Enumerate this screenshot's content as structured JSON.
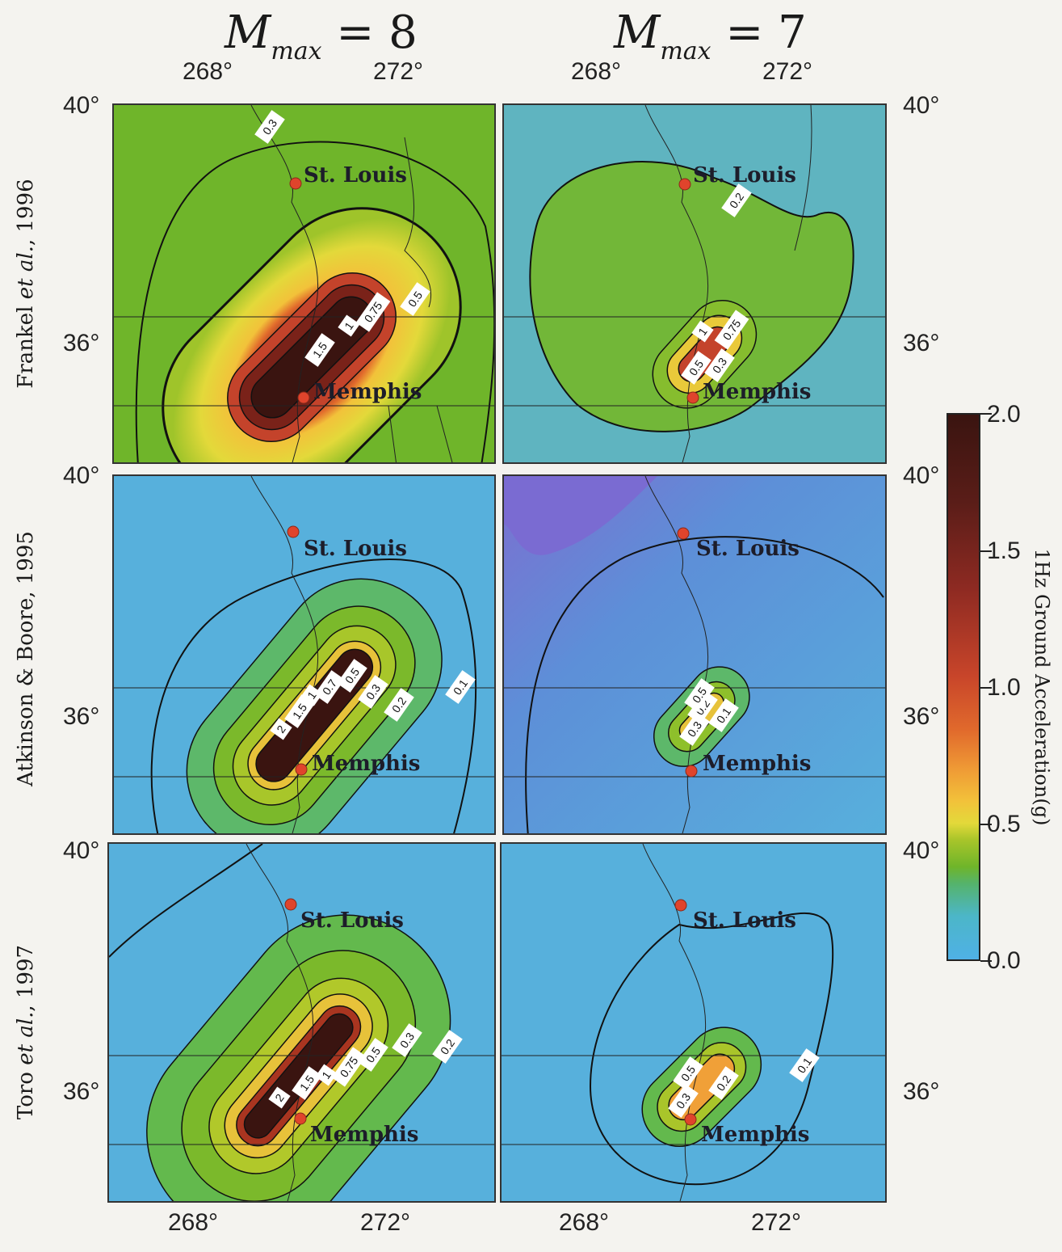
{
  "column_titles": [
    {
      "m": "M",
      "sub": "max",
      "rest": " = 8"
    },
    {
      "m": "M",
      "sub": "max",
      "rest": " = 7"
    }
  ],
  "row_titles": [
    {
      "name": "Frankel ",
      "etal": "et al.",
      "year": ", 1996"
    },
    {
      "name": "Atkinson & Boore, 1995",
      "etal": "",
      "year": ""
    },
    {
      "name": "Toro ",
      "etal": "et al.",
      "year": ", 1997"
    }
  ],
  "lon_ticks": [
    "268°",
    "272°"
  ],
  "lat_ticks": [
    "40°",
    "36°"
  ],
  "cities": {
    "st_louis": "St. Louis",
    "memphis": "Memphis"
  },
  "colorbar": {
    "title": "1Hz Ground Acceleration(g)",
    "ticks": [
      "2.0",
      "1.5",
      "1.0",
      "0.5",
      "0.0"
    ],
    "colors": {
      "low": "#4fb1e6",
      "mid": "#e3d93a",
      "high": "#3a1410"
    }
  },
  "panels": [
    {
      "id": "frankel-m8",
      "background": "#6fb52a",
      "contour_labels": [
        "0.3",
        "0.5",
        "0.75",
        "1",
        "1.5"
      ]
    },
    {
      "id": "frankel-m7",
      "background": "#6fb52a",
      "contour_labels": [
        "0.2",
        "0.3",
        "0.5",
        "0.75",
        "1"
      ]
    },
    {
      "id": "atkinson-m8",
      "background": "#57b0dc",
      "contour_labels": [
        "0.1",
        "0.2",
        "0.3",
        "0.5",
        "0.7",
        "1",
        "1.5",
        "2"
      ]
    },
    {
      "id": "atkinson-m7",
      "background": "#57b0dc",
      "contour_labels": [
        "0.1",
        "0.2",
        "0.3",
        "0.5"
      ]
    },
    {
      "id": "toro-m8",
      "background": "#57b0dc",
      "contour_labels": [
        "0.2",
        "0.3",
        "0.5",
        "0.75",
        "1",
        "1.5",
        "2"
      ]
    },
    {
      "id": "toro-m7",
      "background": "#57b0dc",
      "contour_labels": [
        "0.1",
        "0.2",
        "0.3",
        "0.5"
      ]
    }
  ]
}
